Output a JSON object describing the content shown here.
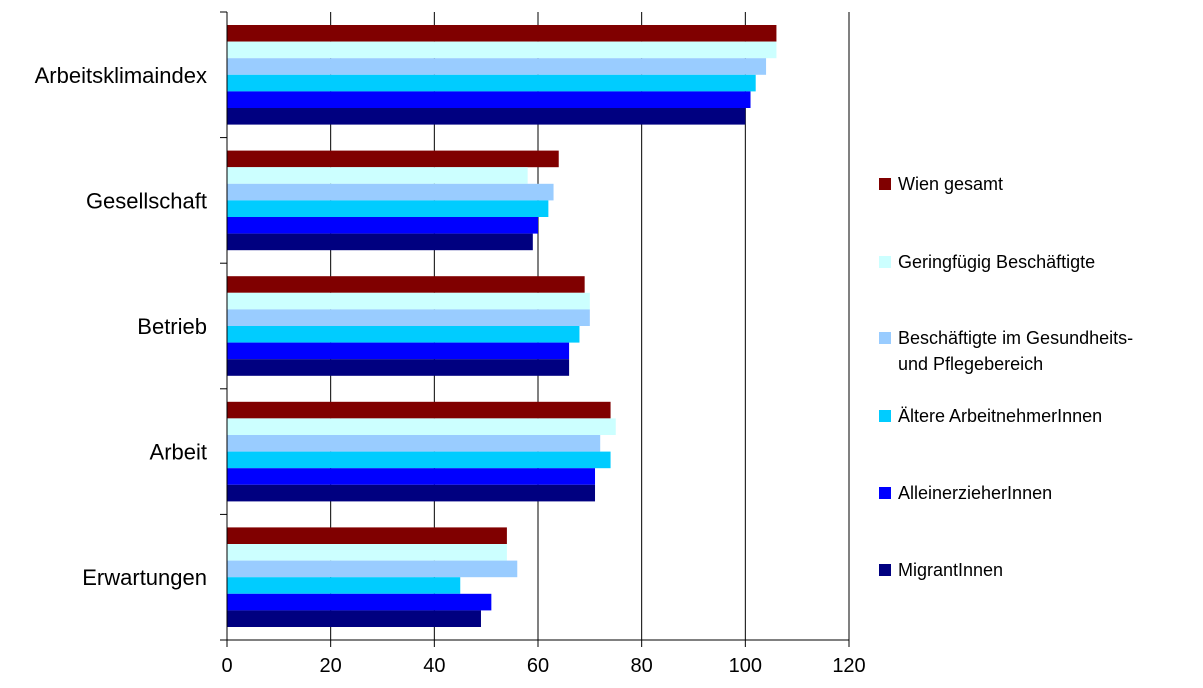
{
  "chart_data": {
    "type": "bar",
    "orientation": "horizontal",
    "categories": [
      "Arbeitsklimaindex",
      "Gesellschaft",
      "Betrieb",
      "Arbeit",
      "Erwartungen"
    ],
    "series": [
      {
        "name": "Wien gesamt",
        "color": "#800000",
        "values": [
          106,
          64,
          69,
          74,
          54
        ]
      },
      {
        "name": "Geringfügig Beschäftigte",
        "color": "#ccffff",
        "values": [
          106,
          58,
          70,
          75,
          54
        ]
      },
      {
        "name": "Beschäftigte im Gesundheits- und Pflegebereich",
        "legend_lines": [
          "Beschäftigte im Gesundheits-",
          "und Pflegebereich"
        ],
        "color": "#99ccff",
        "values": [
          104,
          63,
          70,
          72,
          56
        ]
      },
      {
        "name": "Ältere ArbeitnehmerInnen",
        "color": "#00ccff",
        "values": [
          102,
          62,
          68,
          74,
          45
        ]
      },
      {
        "name": "AlleinerzieherInnen",
        "color": "#0000ff",
        "values": [
          101,
          60,
          66,
          71,
          51
        ]
      },
      {
        "name": "MigrantInnen",
        "color": "#000080",
        "values": [
          100,
          59,
          66,
          71,
          49
        ]
      }
    ],
    "xlim": [
      0,
      120
    ],
    "xticks": [
      0,
      20,
      40,
      60,
      80,
      100,
      120
    ],
    "grid": "vertical",
    "legend_position": "right"
  }
}
